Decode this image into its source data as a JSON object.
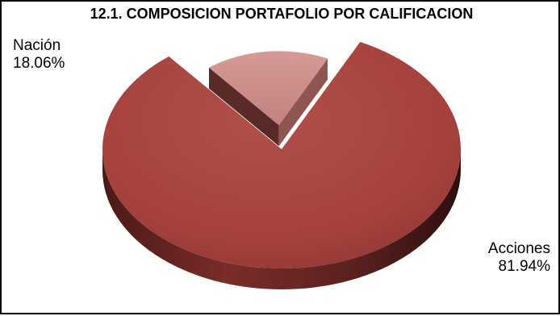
{
  "chart_data": {
    "type": "pie",
    "title": "12.1. COMPOSICION PORTAFOLIO POR CALIFICACION",
    "slices": [
      {
        "label": "Acciones",
        "value": 81.94,
        "display": "81.94%",
        "color": "#a5413d",
        "exploded": false
      },
      {
        "label": "Nación",
        "value": 18.06,
        "display": "18.06%",
        "color": "#c98c89",
        "exploded": true
      }
    ],
    "style": "3d-pie",
    "legend": "none"
  }
}
